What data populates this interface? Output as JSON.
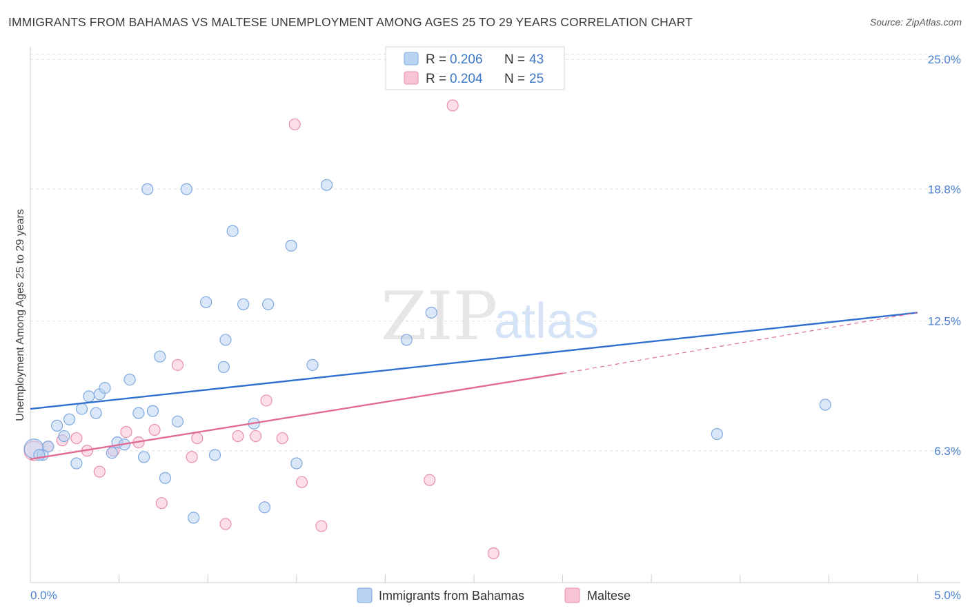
{
  "title": "IMMIGRANTS FROM BAHAMAS VS MALTESE UNEMPLOYMENT AMONG AGES 25 TO 29 YEARS CORRELATION CHART",
  "source": "Source: ZipAtlas.com",
  "watermark": {
    "zip": "ZIP",
    "atlas": "atlas"
  },
  "legend_top": [
    {
      "r_label": "R = ",
      "r_value": "0.206",
      "n_label": "N = ",
      "n_value": "43"
    },
    {
      "r_label": "R = ",
      "r_value": "0.204",
      "n_label": "N = ",
      "n_value": "25"
    }
  ],
  "colors": {
    "blue_fill": "#b9d3f3",
    "blue_stroke": "#7fa8de",
    "blue_line": "#2f6fcf",
    "pink_fill": "#f8c3d3",
    "pink_stroke": "#e88fab",
    "pink_line": "#e06b94",
    "grid": "#dddddd",
    "tick_text": "#4a7fcf"
  },
  "chart_data": {
    "type": "scatter",
    "xlabel": "",
    "ylabel": "Unemployment Among Ages 25 to 29 years",
    "xlim": [
      0,
      5.0
    ],
    "ylim": [
      0,
      25.6
    ],
    "x_tick_labels": [
      "0.0%",
      "5.0%"
    ],
    "y_ticks": [
      6.3,
      12.5,
      18.8,
      25.0
    ],
    "y_tick_labels": [
      "6.3%",
      "12.5%",
      "18.8%",
      "25.0%"
    ],
    "series": [
      {
        "name": "Immigrants from Bahamas",
        "color": "blue",
        "R": 0.206,
        "N": 43,
        "trend": {
          "x": [
            0.0,
            5.0
          ],
          "y": [
            8.3,
            12.9
          ]
        },
        "points": [
          {
            "x": 0.02,
            "y": 6.4,
            "big": true
          },
          {
            "x": 0.07,
            "y": 6.1
          },
          {
            "x": 0.1,
            "y": 6.5
          },
          {
            "x": 0.15,
            "y": 7.5
          },
          {
            "x": 0.19,
            "y": 7.0
          },
          {
            "x": 0.22,
            "y": 7.8
          },
          {
            "x": 0.26,
            "y": 5.7
          },
          {
            "x": 0.29,
            "y": 8.3
          },
          {
            "x": 0.33,
            "y": 8.9
          },
          {
            "x": 0.37,
            "y": 8.1
          },
          {
            "x": 0.39,
            "y": 9.0
          },
          {
            "x": 0.42,
            "y": 9.3
          },
          {
            "x": 0.46,
            "y": 6.2
          },
          {
            "x": 0.49,
            "y": 6.7
          },
          {
            "x": 0.53,
            "y": 6.6
          },
          {
            "x": 0.56,
            "y": 9.7
          },
          {
            "x": 0.61,
            "y": 8.1
          },
          {
            "x": 0.64,
            "y": 6.0
          },
          {
            "x": 0.69,
            "y": 8.2
          },
          {
            "x": 0.73,
            "y": 10.8
          },
          {
            "x": 0.76,
            "y": 5.0
          },
          {
            "x": 0.83,
            "y": 7.7
          },
          {
            "x": 0.66,
            "y": 18.8
          },
          {
            "x": 0.88,
            "y": 18.8
          },
          {
            "x": 0.92,
            "y": 3.1
          },
          {
            "x": 0.99,
            "y": 13.4
          },
          {
            "x": 1.04,
            "y": 6.1
          },
          {
            "x": 1.09,
            "y": 10.3
          },
          {
            "x": 1.1,
            "y": 11.6
          },
          {
            "x": 1.14,
            "y": 16.8
          },
          {
            "x": 1.2,
            "y": 13.3
          },
          {
            "x": 1.26,
            "y": 7.6
          },
          {
            "x": 1.32,
            "y": 3.6
          },
          {
            "x": 1.34,
            "y": 13.3
          },
          {
            "x": 1.47,
            "y": 16.1
          },
          {
            "x": 1.5,
            "y": 5.7
          },
          {
            "x": 1.59,
            "y": 10.4
          },
          {
            "x": 1.67,
            "y": 19.0
          },
          {
            "x": 2.12,
            "y": 11.6
          },
          {
            "x": 2.26,
            "y": 12.9
          },
          {
            "x": 3.87,
            "y": 7.1
          },
          {
            "x": 4.48,
            "y": 8.5
          },
          {
            "x": 0.05,
            "y": 6.1
          }
        ]
      },
      {
        "name": "Maltese",
        "color": "pink",
        "R": 0.204,
        "N": 25,
        "trend": {
          "x": [
            0.0,
            3.0
          ],
          "y": [
            5.9,
            10.0
          ]
        },
        "trend_dashed": {
          "x": [
            3.0,
            5.0
          ],
          "y": [
            10.0,
            12.9
          ]
        },
        "points": [
          {
            "x": 0.02,
            "y": 6.3,
            "big": true
          },
          {
            "x": 0.1,
            "y": 6.5
          },
          {
            "x": 0.18,
            "y": 6.8
          },
          {
            "x": 0.26,
            "y": 6.9
          },
          {
            "x": 0.32,
            "y": 6.3
          },
          {
            "x": 0.39,
            "y": 5.3
          },
          {
            "x": 0.47,
            "y": 6.3
          },
          {
            "x": 0.54,
            "y": 7.2
          },
          {
            "x": 0.61,
            "y": 6.7
          },
          {
            "x": 0.7,
            "y": 7.3
          },
          {
            "x": 0.74,
            "y": 3.8
          },
          {
            "x": 0.83,
            "y": 10.4
          },
          {
            "x": 0.91,
            "y": 6.0
          },
          {
            "x": 0.94,
            "y": 6.9
          },
          {
            "x": 1.1,
            "y": 2.8
          },
          {
            "x": 1.17,
            "y": 7.0
          },
          {
            "x": 1.27,
            "y": 7.0
          },
          {
            "x": 1.33,
            "y": 8.7
          },
          {
            "x": 1.42,
            "y": 6.9
          },
          {
            "x": 1.49,
            "y": 21.9
          },
          {
            "x": 1.53,
            "y": 4.8
          },
          {
            "x": 1.64,
            "y": 2.7
          },
          {
            "x": 2.25,
            "y": 4.9
          },
          {
            "x": 2.38,
            "y": 22.8
          },
          {
            "x": 2.61,
            "y": 1.4
          }
        ]
      }
    ]
  }
}
